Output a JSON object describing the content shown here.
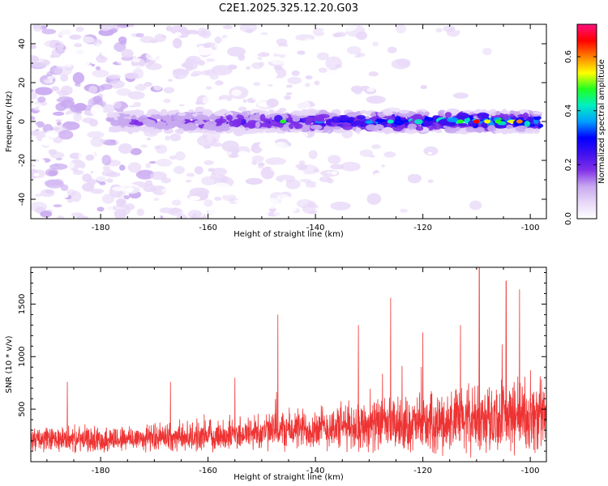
{
  "chart_data": [
    {
      "type": "heatmap",
      "title": "C2E1.2025.325.12.20.G03",
      "xlabel": "Height of straight line (km)",
      "ylabel": "Frequency (Hz)",
      "xlim": [
        -193,
        -97
      ],
      "ylim": [
        -50,
        50
      ],
      "xticks": [
        -180,
        -160,
        -140,
        -120,
        -100
      ],
      "yticks": [
        -40,
        -20,
        0,
        20,
        40
      ],
      "xtick_labels": [
        "-180",
        "-160",
        "-140",
        "-120",
        "-100"
      ],
      "ytick_labels": [
        "-40",
        "-20",
        "0",
        "20",
        "40"
      ],
      "signal_band": {
        "center_hz": 0,
        "half_width_hz": 5,
        "x_start": -178,
        "x_end": -98
      },
      "colorbar": {
        "label": "Normalized spectral amplitude",
        "range": [
          0.0,
          0.72
        ],
        "ticks": [
          0.0,
          0.2,
          0.4,
          0.6
        ],
        "tick_labels": [
          "0.0",
          "0.2",
          "0.4",
          "0.6"
        ],
        "colormap": [
          "#ffffff",
          "#e8d8f8",
          "#c8a8f0",
          "#8030e8",
          "#4010f0",
          "#0000ff",
          "#00a0ff",
          "#00f0c0",
          "#20ff20",
          "#ffff00",
          "#ff8000",
          "#ff0000",
          "#ff1080"
        ]
      }
    },
    {
      "type": "line",
      "xlabel": "Height of straight line (km)",
      "ylabel": "SNR (10 * v/v)",
      "xlim": [
        -193,
        -97
      ],
      "ylim": [
        0,
        1850
      ],
      "xticks": [
        -180,
        -160,
        -140,
        -120,
        -100
      ],
      "yticks": [
        500,
        1000,
        1500
      ],
      "xtick_labels": [
        "-180",
        "-160",
        "-140",
        "-120",
        "-100"
      ],
      "ytick_labels": [
        "500",
        "1000",
        "1500"
      ],
      "series": [
        {
          "name": "SNR",
          "color": "#ee3333"
        }
      ],
      "envelope": {
        "x": [
          -193,
          -180,
          -170,
          -160,
          -150,
          -140,
          -130,
          -120,
          -110,
          -100,
          -97
        ],
        "baseline": [
          200,
          200,
          220,
          230,
          270,
          300,
          330,
          330,
          380,
          400,
          400
        ],
        "spread": [
          220,
          230,
          240,
          270,
          330,
          380,
          450,
          480,
          600,
          650,
          650
        ]
      },
      "peaks": [
        {
          "x": -186.2,
          "y": 760
        },
        {
          "x": -167,
          "y": 760
        },
        {
          "x": -155,
          "y": 800
        },
        {
          "x": -147,
          "y": 1400
        },
        {
          "x": -132,
          "y": 1300
        },
        {
          "x": -126,
          "y": 1560
        },
        {
          "x": -120,
          "y": 1230
        },
        {
          "x": -113,
          "y": 1300
        },
        {
          "x": -109.5,
          "y": 1850
        },
        {
          "x": -104.5,
          "y": 1720
        },
        {
          "x": -102,
          "y": 1640
        }
      ]
    }
  ]
}
